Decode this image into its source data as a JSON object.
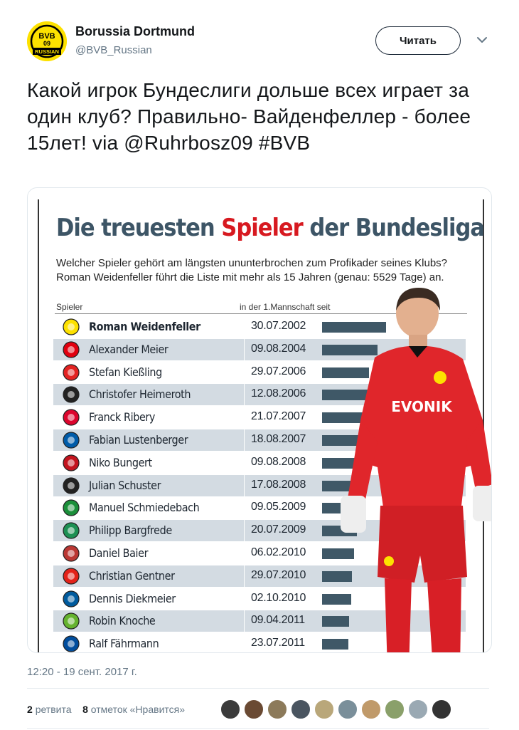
{
  "author": {
    "name": "Borussia Dortmund",
    "handle": "@BVB_Russian",
    "avatar_text_top": "BVB",
    "avatar_text_mid": "09",
    "avatar_text_bottom": "RUSSIAN"
  },
  "follow_label": "Читать",
  "tweet_text": "Какой игрок Бундеслиги дольше всех играет за один клуб? Правильно- Вайденфеллер - более 15лет!  via @Ruhrbosz09 #BVB",
  "infographic": {
    "title_part1": "Die treuesten ",
    "title_accent": "Spieler",
    "title_part2": " der Bundesliga",
    "subtitle": "Welcher Spieler gehört am längsten ununterbrochen zum Profikader seines Klubs? Roman Weidenfeller führt die Liste mit mehr als 15 Jahren (genau: 5529 Tage) an.",
    "col_player": "Spieler",
    "col_since": "in der 1.Mannschaft seit",
    "sponsor": "EVONIK",
    "players": [
      {
        "name": "Roman Weidenfeller",
        "date": "30.07.2002",
        "days": 5529,
        "color": "#fde100"
      },
      {
        "name": "Alexander Meier",
        "date": "09.08.2004",
        "days": 4790,
        "color": "#e1000f"
      },
      {
        "name": "Stefan Kießling",
        "date": "29.07.2006",
        "days": 4070,
        "color": "#e32221"
      },
      {
        "name": "Christofer Heimeroth",
        "date": "12.08.2006",
        "days": 4055,
        "color": "#222222"
      },
      {
        "name": "Franck Ribery",
        "date": "21.07.2007",
        "days": 3712,
        "color": "#dc052d"
      },
      {
        "name": "Fabian Lustenberger",
        "date": "18.08.2007",
        "days": 3684,
        "color": "#005ca9"
      },
      {
        "name": "Niko Bungert",
        "date": "09.08.2008",
        "days": 3327,
        "color": "#c3141e"
      },
      {
        "name": "Julian Schuster",
        "date": "17.08.2008",
        "days": 3319,
        "color": "#222222"
      },
      {
        "name": "Manuel Schmiedebach",
        "date": "09.05.2009",
        "days": 3054,
        "color": "#1b8f3a"
      },
      {
        "name": "Philipp Bargfrede",
        "date": "20.07.2009",
        "days": 2982,
        "color": "#1d9053"
      },
      {
        "name": "Daniel Baier",
        "date": "06.02.2010",
        "days": 2781,
        "color": "#ba3733"
      },
      {
        "name": "Christian Gentner",
        "date": "29.07.2010",
        "days": 2608,
        "color": "#e32219"
      },
      {
        "name": "Dennis Diekmeier",
        "date": "02.10.2010",
        "days": 2543,
        "color": "#005b9e"
      },
      {
        "name": "Robin Knoche",
        "date": "09.04.2011",
        "days": 2354,
        "color": "#65b32e"
      },
      {
        "name": "Ralf Fährmann",
        "date": "23.07.2011",
        "days": 2249,
        "color": "#004d9d"
      }
    ]
  },
  "timestamp": "12:20 - 19 сент. 2017 г.",
  "retweets_count": "2",
  "retweets_label": "ретвита",
  "likes_count": "8",
  "likes_label": "отметок «Нравится»",
  "liker_colors": [
    "#3b3b3b",
    "#6a4a33",
    "#8c7a5a",
    "#4a5560",
    "#b9a77a",
    "#7a8f9a",
    "#c09a6a",
    "#8aa06a",
    "#9aa9b3",
    "#333333"
  ]
}
